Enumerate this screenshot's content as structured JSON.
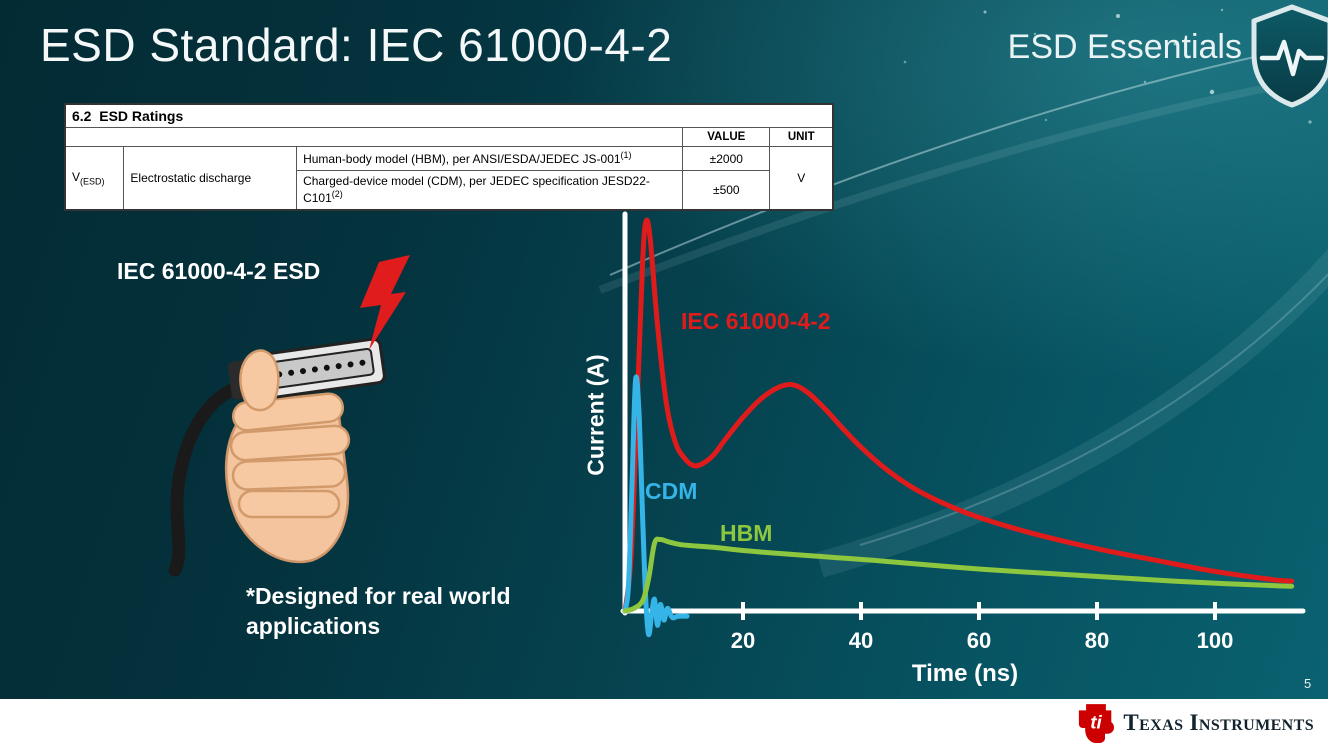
{
  "slide": {
    "title": "ESD Standard: IEC 61000-4-2",
    "brand": "ESD Essentials",
    "page_number": "5"
  },
  "ratings_table": {
    "section_number": "6.2",
    "section_title": "ESD Ratings",
    "value_header": "VALUE",
    "unit_header": "UNIT",
    "symbol": "V",
    "symbol_sub": "(ESD)",
    "parameter": "Electrostatic discharge",
    "rows": [
      {
        "description": "Human-body model (HBM), per ANSI/ESDA/JEDEC JS-001",
        "sup": "(1)",
        "value": "±2000"
      },
      {
        "description": "Charged-device model (CDM), per JEDEC specification JESD22-C101",
        "sup": "(2)",
        "value": "±500"
      }
    ],
    "unit": "V"
  },
  "illustration": {
    "caption": "IEC 61000-4-2 ESD",
    "note_line1": "*Designed for real world",
    "note_line2": "applications"
  },
  "footer": {
    "logo_text": "Texas Instruments"
  },
  "icons": {
    "brand_icon": "shield-pulse-icon",
    "strike_icon": "lightning-bolt-icon",
    "logo_icon": "ti-bug-icon"
  },
  "colors": {
    "iec_red": "#e01b1b",
    "cdm_blue": "#35b4e8",
    "hbm_green": "#8dc63f",
    "background_teal": "#05424e",
    "ti_red": "#cc0000"
  },
  "chart_data": {
    "type": "line",
    "title": "",
    "xlabel": "Time (ns)",
    "ylabel": "Current (A)",
    "xlim": [
      0,
      114
    ],
    "ylim": [
      -2,
      31
    ],
    "xticks": [
      20,
      40,
      60,
      80,
      100
    ],
    "yticks": [],
    "grid": false,
    "legend": "inline labels on curves",
    "series": [
      {
        "name": "IEC 61000-4-2",
        "color": "#e01b1b",
        "points": [
          [
            0,
            0
          ],
          [
            1,
            4
          ],
          [
            2,
            15
          ],
          [
            3,
            27
          ],
          [
            3.6,
            30
          ],
          [
            4.3,
            28.5
          ],
          [
            5.5,
            22
          ],
          [
            7,
            16
          ],
          [
            8.5,
            13
          ],
          [
            10,
            11.8
          ],
          [
            11.5,
            11.2
          ],
          [
            13,
            11.3
          ],
          [
            15,
            12
          ],
          [
            17,
            13.2
          ],
          [
            20,
            14.9
          ],
          [
            23,
            16.3
          ],
          [
            26,
            17.2
          ],
          [
            28.5,
            17.4
          ],
          [
            31,
            16.8
          ],
          [
            34,
            15.5
          ],
          [
            37,
            14
          ],
          [
            40,
            12.6
          ],
          [
            44,
            11
          ],
          [
            48,
            9.7
          ],
          [
            52,
            8.7
          ],
          [
            57,
            7.7
          ],
          [
            62,
            6.9
          ],
          [
            68,
            6.1
          ],
          [
            75,
            5.3
          ],
          [
            82,
            4.6
          ],
          [
            90,
            3.9
          ],
          [
            98,
            3.2
          ],
          [
            105,
            2.7
          ],
          [
            110,
            2.4
          ],
          [
            113,
            2.3
          ]
        ]
      },
      {
        "name": "CDM",
        "color": "#35b4e8",
        "points": [
          [
            0,
            0
          ],
          [
            0.6,
            2
          ],
          [
            1.2,
            10
          ],
          [
            1.8,
            17.8
          ],
          [
            2.4,
            15
          ],
          [
            3,
            7
          ],
          [
            3.5,
            1
          ],
          [
            4,
            -1.8
          ],
          [
            4.5,
            -0.3
          ],
          [
            5,
            0.9
          ],
          [
            5.5,
            -1.1
          ],
          [
            6,
            0.5
          ],
          [
            6.6,
            -0.7
          ],
          [
            7.2,
            0.2
          ],
          [
            8,
            -0.5
          ],
          [
            9,
            -0.4
          ],
          [
            10.5,
            -0.4
          ]
        ]
      },
      {
        "name": "HBM",
        "color": "#8dc63f",
        "points": [
          [
            0,
            0
          ],
          [
            1.5,
            0.2
          ],
          [
            3,
            0.8
          ],
          [
            4,
            2.5
          ],
          [
            5,
            5.2
          ],
          [
            6,
            5.5
          ],
          [
            7.5,
            5.3
          ],
          [
            9.5,
            5.1
          ],
          [
            12,
            5
          ],
          [
            15,
            4.9
          ],
          [
            19,
            4.7
          ],
          [
            24,
            4.5
          ],
          [
            30,
            4.3
          ],
          [
            36,
            4.1
          ],
          [
            42,
            3.9
          ],
          [
            50,
            3.6
          ],
          [
            58,
            3.3
          ],
          [
            66,
            3.05
          ],
          [
            75,
            2.8
          ],
          [
            84,
            2.55
          ],
          [
            93,
            2.3
          ],
          [
            102,
            2.1
          ],
          [
            110,
            1.95
          ],
          [
            113,
            1.9
          ]
        ]
      }
    ]
  }
}
